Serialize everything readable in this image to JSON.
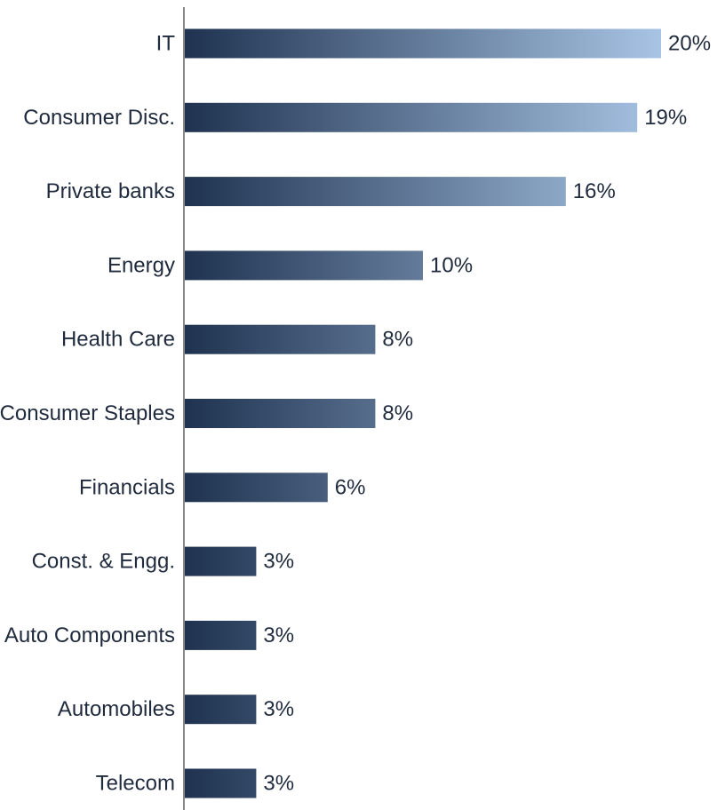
{
  "chart_data": {
    "type": "bar",
    "orientation": "horizontal",
    "categories": [
      "IT",
      "Consumer Disc.",
      "Private banks",
      "Energy",
      "Health Care",
      "Consumer Staples",
      "Financials",
      "Const. & Engg.",
      "Auto Components",
      "Automobiles",
      "Telecom"
    ],
    "values": [
      20,
      19,
      16,
      10,
      8,
      8,
      6,
      3,
      3,
      3,
      3
    ],
    "value_labels": [
      "20%",
      "19%",
      "16%",
      "10%",
      "8%",
      "8%",
      "6%",
      "3%",
      "3%",
      "3%",
      "3%"
    ],
    "title": "",
    "xlabel": "",
    "ylabel": "",
    "xlim": [
      0,
      20
    ],
    "grid": false,
    "legend": "none",
    "colors": {
      "bar_start": "#1f3350",
      "bar_end": "#a8c4e4",
      "axis": "#8a8a8a",
      "text": "#1f2a3d"
    }
  }
}
